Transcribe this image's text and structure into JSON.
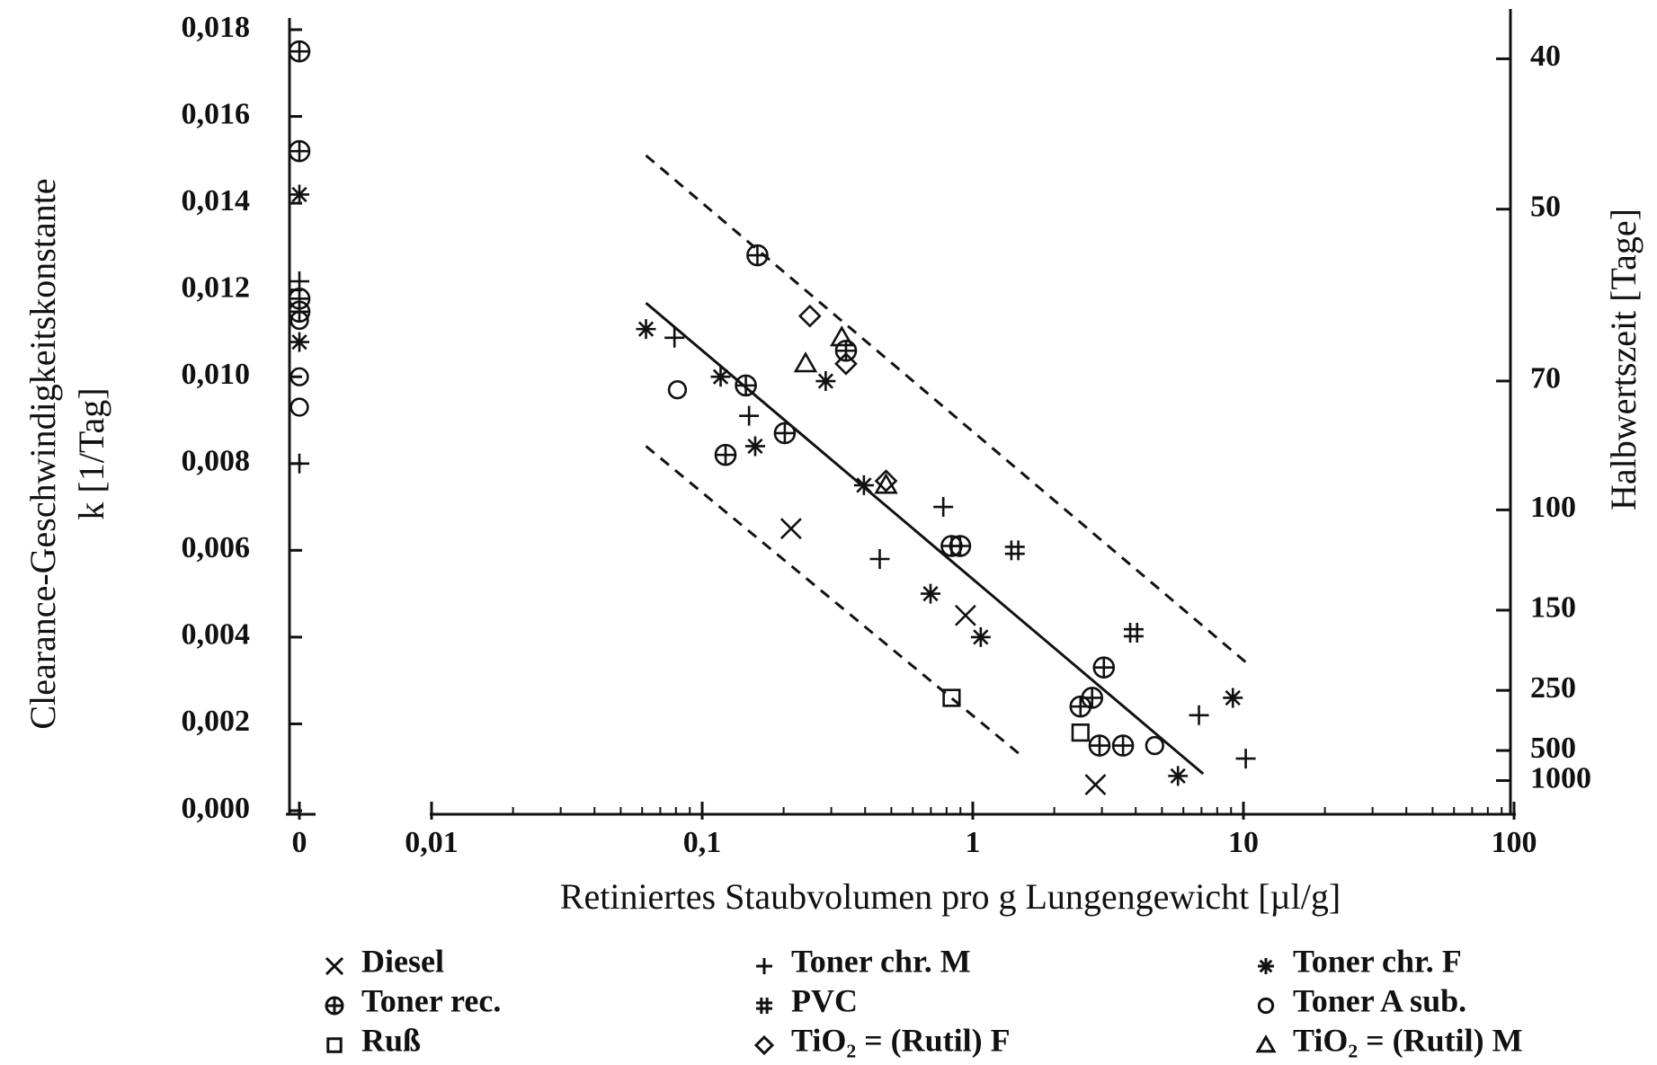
{
  "chart_data": {
    "type": "scatter",
    "xlabel": "Retiniertes Staubvolumen pro g Lungengewicht [µl/g]",
    "ylabel": [
      "Clearance-Geschwindigkeitskonstante",
      "k [1/Tag]"
    ],
    "y2label": "Halbwertszeit [Tage]",
    "xscale": "log",
    "y2scale": "reciprocal",
    "xlim": [
      0.01,
      100
    ],
    "ylim": [
      0,
      0.018
    ],
    "xticks": [
      {
        "value": 0,
        "label": "0"
      },
      {
        "value": 0.01,
        "label": "0,01"
      },
      {
        "value": 0.1,
        "label": "0,1"
      },
      1,
      10,
      100
    ],
    "yticks": [
      {
        "value": 0,
        "label": "0,000"
      },
      {
        "value": 0.002,
        "label": "0,002"
      },
      {
        "value": 0.004,
        "label": "0,004"
      },
      {
        "value": 0.006,
        "label": "0,006"
      },
      {
        "value": 0.008,
        "label": "0,008"
      },
      {
        "value": 0.01,
        "label": "0,010"
      },
      {
        "value": 0.012,
        "label": "0,012"
      },
      {
        "value": 0.014,
        "label": "0,014"
      },
      {
        "value": 0.016,
        "label": "0,016"
      },
      {
        "value": 0.018,
        "label": "0,018"
      }
    ],
    "y2ticks": [
      40,
      50,
      70,
      100,
      150,
      250,
      500,
      1000
    ],
    "color": "#111111",
    "series": [
      {
        "name": "Diesel",
        "marker": "x",
        "x": [
          0.213,
          0.94,
          2.84
        ],
        "values": [
          0.0065,
          0.0045,
          0.0006
        ]
      },
      {
        "name": "Toner chr. M",
        "marker": "plus",
        "x": [
          0,
          0,
          0.079,
          0.149,
          0.778,
          0.453,
          6.85,
          10.2
        ],
        "values": [
          0.008,
          0.0122,
          0.0109,
          0.0091,
          0.007,
          0.0058,
          0.0022,
          0.0012
        ]
      },
      {
        "name": "Toner chr. F",
        "marker": "asterisk",
        "x": [
          0,
          0,
          0.062,
          0.117,
          0.157,
          0.286,
          0.396,
          0.698,
          1.07,
          9.14,
          5.73
        ],
        "values": [
          0.0142,
          0.0108,
          0.0111,
          0.01,
          0.0084,
          0.0099,
          0.0075,
          0.005,
          0.004,
          0.0026,
          0.0008
        ]
      },
      {
        "name": "Toner rec.",
        "marker": "circle-plus",
        "x": [
          0,
          0,
          0,
          0,
          0.16,
          0.34,
          0.145,
          0.202,
          0.122,
          0.835,
          0.898,
          3.05,
          2.76,
          2.5,
          2.94,
          3.59
        ],
        "values": [
          0.0175,
          0.0152,
          0.0118,
          0.0115,
          0.0128,
          0.0106,
          0.0098,
          0.0087,
          0.0082,
          0.0061,
          0.0061,
          0.0033,
          0.0026,
          0.0024,
          0.0015,
          0.0015
        ]
      },
      {
        "name": "PVC",
        "marker": "hash",
        "x": [
          1.43,
          3.93
        ],
        "values": [
          0.006,
          0.0041
        ]
      },
      {
        "name": "Toner A sub.",
        "marker": "circle",
        "x": [
          0,
          0,
          0,
          0.081,
          4.7
        ],
        "values": [
          0.01,
          0.0093,
          0.0113,
          0.0097,
          0.0015
        ]
      },
      {
        "name": "Ruß",
        "marker": "square",
        "x": [
          0.835,
          2.5
        ],
        "values": [
          0.0026,
          0.0018
        ]
      },
      {
        "name": "TiO₂ = (Rutil) F",
        "marker": "diamond",
        "x": [
          0.25,
          0.34,
          0.478
        ],
        "values": [
          0.0114,
          0.0103,
          0.0076
        ]
      },
      {
        "name": "TiO₂ = (Rutil) M",
        "marker": "triangle",
        "x": [
          0.328,
          0.241,
          0.478
        ],
        "values": [
          0.0109,
          0.0103,
          0.0075
        ]
      }
    ],
    "lines": [
      {
        "style": "solid",
        "x": [
          0.062,
          7.1
        ],
        "values": [
          0.0117,
          0.00085
        ]
      },
      {
        "style": "dashed",
        "x": [
          0.062,
          10.3
        ],
        "values": [
          0.0151,
          0.0034
        ]
      },
      {
        "style": "dashed",
        "x": [
          0.062,
          1.49
        ],
        "values": [
          0.0084,
          0.0013
        ]
      }
    ]
  }
}
